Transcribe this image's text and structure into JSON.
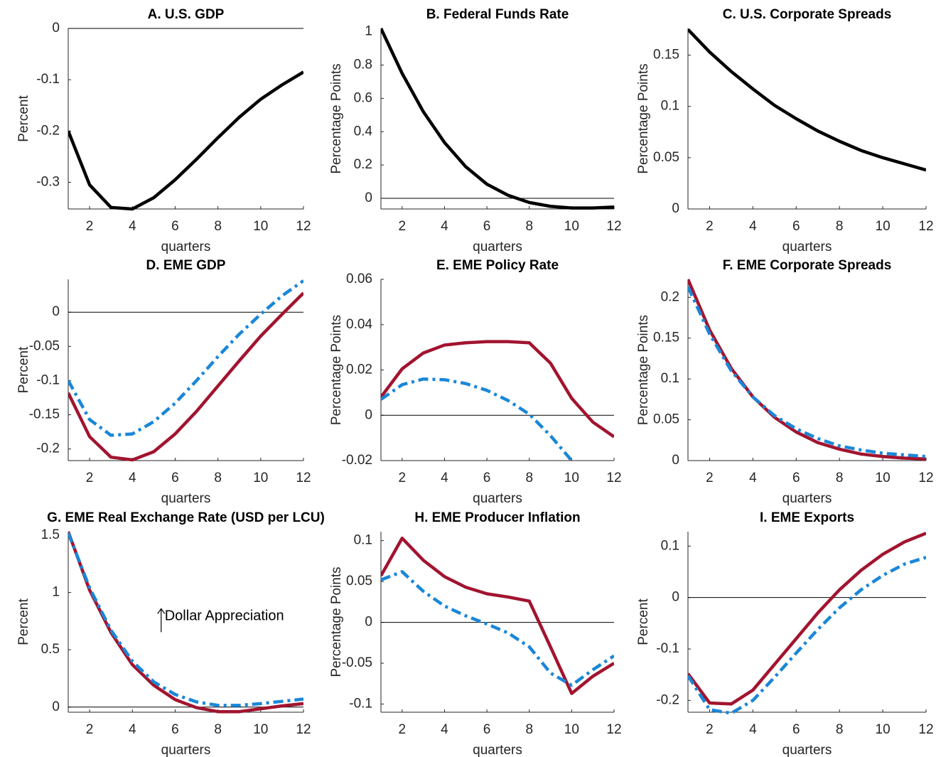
{
  "chart_data": [
    {
      "type": "line",
      "title": "A. U.S. GDP",
      "xlabel": "quarters",
      "ylabel": "Percent",
      "x": [
        1,
        2,
        3,
        4,
        5,
        6,
        7,
        8,
        9,
        10,
        11,
        12
      ],
      "xlim": [
        1,
        12
      ],
      "xticks": [
        2,
        4,
        6,
        8,
        10,
        12
      ],
      "ylim": [
        -0.352,
        0
      ],
      "yticks": [
        -0.3,
        -0.2,
        -0.1,
        0
      ],
      "zero_line": true,
      "series": [
        {
          "color": "#000000",
          "values": [
            -0.2,
            -0.305,
            -0.349,
            -0.352,
            -0.33,
            -0.295,
            -0.255,
            -0.213,
            -0.173,
            -0.138,
            -0.11,
            -0.085
          ]
        }
      ]
    },
    {
      "type": "line",
      "title": "B. Federal Funds Rate",
      "xlabel": "quarters",
      "ylabel": "Percentage Points",
      "x": [
        1,
        2,
        3,
        4,
        5,
        6,
        7,
        8,
        9,
        10,
        11,
        12
      ],
      "xlim": [
        1,
        12
      ],
      "xticks": [
        2,
        4,
        6,
        8,
        10,
        12
      ],
      "ylim": [
        -0.064,
        1.02
      ],
      "yticks": [
        0,
        0.2,
        0.4,
        0.6,
        0.8,
        1
      ],
      "zero_line": true,
      "series": [
        {
          "color": "#000000",
          "values": [
            1.02,
            0.75,
            0.52,
            0.335,
            0.19,
            0.085,
            0.018,
            -0.025,
            -0.048,
            -0.058,
            -0.058,
            -0.052
          ]
        }
      ]
    },
    {
      "type": "line",
      "title": "C. U.S. Corporate Spreads",
      "xlabel": "quarters",
      "ylabel": "Percentage Points",
      "x": [
        1,
        2,
        3,
        4,
        5,
        6,
        7,
        8,
        9,
        10,
        11,
        12
      ],
      "xlim": [
        1,
        12
      ],
      "xticks": [
        2,
        4,
        6,
        8,
        10,
        12
      ],
      "ylim": [
        0,
        0.176
      ],
      "yticks": [
        0,
        0.05,
        0.1,
        0.15
      ],
      "zero_line": false,
      "series": [
        {
          "color": "#000000",
          "values": [
            0.175,
            0.153,
            0.134,
            0.117,
            0.101,
            0.088,
            0.076,
            0.066,
            0.057,
            0.05,
            0.044,
            0.038
          ]
        }
      ]
    },
    {
      "type": "line",
      "title": "D. EME GDP",
      "xlabel": "quarters",
      "ylabel": "Percent",
      "x": [
        1,
        2,
        3,
        4,
        5,
        6,
        7,
        8,
        9,
        10,
        11,
        12
      ],
      "xlim": [
        1,
        12
      ],
      "xticks": [
        2,
        4,
        6,
        8,
        10,
        12
      ],
      "ylim": [
        -0.217,
        0.048
      ],
      "yticks": [
        -0.2,
        -0.15,
        -0.1,
        -0.05,
        0
      ],
      "zero_line": true,
      "series": [
        {
          "color": "#a2142f",
          "values": [
            -0.118,
            -0.182,
            -0.212,
            -0.216,
            -0.204,
            -0.178,
            -0.145,
            -0.108,
            -0.071,
            -0.035,
            -0.003,
            0.028
          ]
        },
        {
          "color": "#1a87d8",
          "dash": true,
          "values": [
            -0.1,
            -0.157,
            -0.18,
            -0.178,
            -0.16,
            -0.133,
            -0.1,
            -0.065,
            -0.032,
            -0.003,
            0.024,
            0.046
          ]
        }
      ]
    },
    {
      "type": "line",
      "title": "E. EME Policy Rate",
      "xlabel": "quarters",
      "ylabel": "Percentage Points",
      "x": [
        1,
        2,
        3,
        4,
        5,
        6,
        7,
        8,
        9,
        10,
        11,
        12
      ],
      "xlim": [
        1,
        12
      ],
      "xticks": [
        2,
        4,
        6,
        8,
        10,
        12
      ],
      "ylim": [
        -0.02,
        0.06
      ],
      "yticks": [
        -0.02,
        0,
        0.02,
        0.04,
        0.06
      ],
      "zero_line": true,
      "series": [
        {
          "color": "#a2142f",
          "values": [
            0.008,
            0.0205,
            0.0275,
            0.031,
            0.032,
            0.0325,
            0.0325,
            0.032,
            0.023,
            0.0075,
            -0.003,
            -0.0095
          ]
        },
        {
          "color": "#1a87d8",
          "dash": true,
          "values": [
            0.007,
            0.0135,
            0.016,
            0.0157,
            0.014,
            0.011,
            0.0065,
            0.0005,
            -0.009,
            -0.02,
            null,
            null
          ]
        }
      ]
    },
    {
      "type": "line",
      "title": "F. EME Corporate Spreads",
      "xlabel": "quarters",
      "ylabel": "Percentage Points",
      "x": [
        1,
        2,
        3,
        4,
        5,
        6,
        7,
        8,
        9,
        10,
        11,
        12
      ],
      "xlim": [
        1,
        12
      ],
      "xticks": [
        2,
        4,
        6,
        8,
        10,
        12
      ],
      "ylim": [
        0,
        0.222
      ],
      "yticks": [
        0,
        0.05,
        0.1,
        0.15,
        0.2
      ],
      "zero_line": false,
      "series": [
        {
          "color": "#a2142f",
          "values": [
            0.222,
            0.16,
            0.113,
            0.078,
            0.053,
            0.035,
            0.022,
            0.014,
            0.008,
            0.005,
            0.003,
            0.002
          ]
        },
        {
          "color": "#1a87d8",
          "dash": true,
          "values": [
            0.213,
            0.155,
            0.11,
            0.078,
            0.055,
            0.039,
            0.027,
            0.018,
            0.013,
            0.009,
            0.007,
            0.005
          ]
        }
      ]
    },
    {
      "type": "line",
      "title": "G. EME Real Exchange Rate (USD per LCU)",
      "xlabel": "quarters",
      "ylabel": "Percent",
      "annotation": "Dollar Appreciation",
      "x": [
        1,
        2,
        3,
        4,
        5,
        6,
        7,
        8,
        9,
        10,
        11,
        12
      ],
      "xlim": [
        1,
        12
      ],
      "xticks": [
        2,
        4,
        6,
        8,
        10,
        12
      ],
      "ylim": [
        -0.045,
        1.53
      ],
      "yticks": [
        0,
        0.5,
        1,
        1.5
      ],
      "zero_line": true,
      "series": [
        {
          "color": "#a2142f",
          "values": [
            1.53,
            1.02,
            0.65,
            0.37,
            0.19,
            0.065,
            -0.005,
            -0.04,
            -0.04,
            -0.015,
            0.01,
            0.03
          ]
        },
        {
          "color": "#1a87d8",
          "dash": true,
          "values": [
            1.52,
            1.04,
            0.67,
            0.4,
            0.22,
            0.11,
            0.045,
            0.015,
            0.015,
            0.03,
            0.05,
            0.07
          ]
        }
      ]
    },
    {
      "type": "line",
      "title": "H. EME Producer Inflation",
      "xlabel": "quarters",
      "ylabel": "Percentage Points",
      "x": [
        1,
        2,
        3,
        4,
        5,
        6,
        7,
        8,
        9,
        10,
        11,
        12
      ],
      "xlim": [
        1,
        12
      ],
      "xticks": [
        2,
        4,
        6,
        8,
        10,
        12
      ],
      "ylim": [
        -0.11,
        0.111
      ],
      "yticks": [
        -0.1,
        -0.05,
        0,
        0.05,
        0.1
      ],
      "zero_line": true,
      "series": [
        {
          "color": "#a2142f",
          "values": [
            0.057,
            0.103,
            0.076,
            0.056,
            0.043,
            0.035,
            0.031,
            0.026,
            -0.03,
            -0.087,
            -0.066,
            -0.05
          ]
        },
        {
          "color": "#1a87d8",
          "dash": true,
          "values": [
            0.052,
            0.062,
            0.038,
            0.02,
            0.008,
            -0.002,
            -0.013,
            -0.03,
            -0.062,
            -0.077,
            -0.058,
            -0.041
          ]
        }
      ]
    },
    {
      "type": "line",
      "title": "I. EME Exports",
      "xlabel": "quarters",
      "ylabel": "Percent",
      "x": [
        1,
        2,
        3,
        4,
        5,
        6,
        7,
        8,
        9,
        10,
        11,
        12
      ],
      "xlim": [
        1,
        12
      ],
      "xticks": [
        2,
        4,
        6,
        8,
        10,
        12
      ],
      "ylim": [
        -0.223,
        0.128
      ],
      "yticks": [
        -0.2,
        -0.1,
        0,
        0.1
      ],
      "zero_line": true,
      "series": [
        {
          "color": "#a2142f",
          "values": [
            -0.148,
            -0.205,
            -0.207,
            -0.18,
            -0.13,
            -0.08,
            -0.03,
            0.015,
            0.053,
            0.084,
            0.108,
            0.125
          ]
        },
        {
          "color": "#1a87d8",
          "dash": true,
          "values": [
            -0.152,
            -0.218,
            -0.225,
            -0.2,
            -0.155,
            -0.108,
            -0.062,
            -0.02,
            0.015,
            0.043,
            0.065,
            0.078
          ]
        }
      ]
    }
  ]
}
